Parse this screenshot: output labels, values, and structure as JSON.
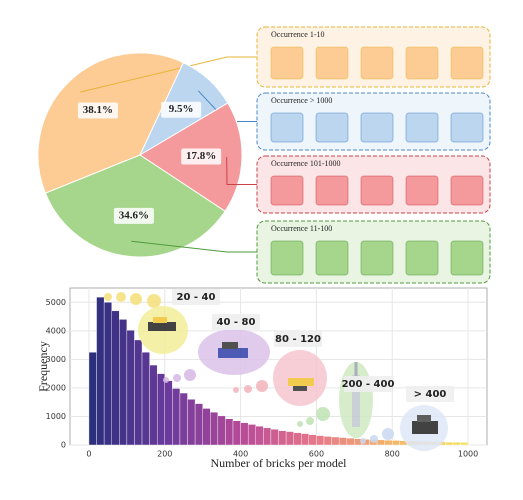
{
  "chart_data": [
    {
      "type": "pie",
      "categories": [
        "Occurrence 1-10",
        "Occurrence > 1000",
        "Occurrence 101-1000",
        "Occurrence 11-100"
      ],
      "values": [
        38.1,
        9.5,
        17.8,
        34.6
      ],
      "value_labels": [
        "38.1%",
        "9.5%",
        "17.8%",
        "34.6%"
      ],
      "colors": [
        "#fdcb94",
        "#bcd6f0",
        "#f4999c",
        "#a6d68c"
      ],
      "box_colors": [
        "#e6b53a",
        "#4b87c8",
        "#c9424a",
        "#4f9a3c"
      ]
    },
    {
      "type": "histogram",
      "xlabel": "Number of bricks per model",
      "ylabel": "Frequency",
      "bins": [
        0,
        20,
        40,
        60,
        80,
        100,
        120,
        140,
        160,
        180,
        200,
        220,
        240,
        260,
        280,
        300,
        320,
        340,
        360,
        380,
        400,
        420,
        440,
        460,
        480,
        500,
        520,
        540,
        560,
        580,
        600,
        620,
        640,
        660,
        680,
        700,
        720,
        740,
        760,
        780,
        800,
        820,
        840,
        860,
        880,
        900,
        920,
        940,
        960,
        980,
        1000
      ],
      "values": [
        3250,
        5180,
        5000,
        4700,
        4400,
        4020,
        3680,
        3250,
        2800,
        2500,
        2250,
        1980,
        1820,
        1600,
        1450,
        1280,
        1150,
        1020,
        920,
        850,
        780,
        720,
        660,
        600,
        550,
        500,
        470,
        430,
        400,
        360,
        330,
        300,
        280,
        260,
        240,
        220,
        200,
        190,
        180,
        170,
        160,
        150,
        140,
        130,
        120,
        115,
        110,
        100,
        95,
        90
      ],
      "colors": [
        "#2c2f7c",
        "#6a3a9c",
        "#b64a98",
        "#e7778a",
        "#f4b46a",
        "#f3e25a"
      ],
      "xlim": [
        -50,
        1050
      ],
      "ylim": [
        0,
        5500
      ],
      "xticks": [
        0,
        200,
        400,
        600,
        800,
        1000
      ],
      "yticks": [
        0,
        1000,
        2000,
        3000,
        4000,
        5000
      ],
      "grid": true,
      "annotations": [
        "20 - 40",
        "40 - 80",
        "80 - 120",
        "200 - 400",
        "> 400"
      ]
    }
  ]
}
